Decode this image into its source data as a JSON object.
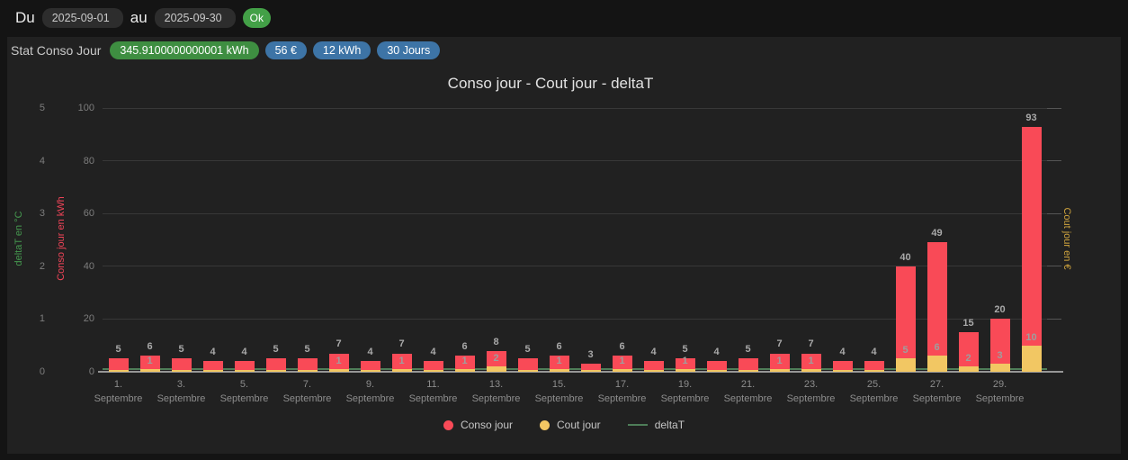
{
  "toolbar": {
    "du_label": "Du",
    "au_label": "au",
    "date_from": "2025-09-01",
    "date_to": "2025-09-30",
    "ok_label": "Ok"
  },
  "panel": {
    "title": "Stat Conso Jour",
    "badges": [
      {
        "label": "345.9100000000001 kWh",
        "color": "#3e8e41"
      },
      {
        "label": "56 €",
        "color": "#3d74a6"
      },
      {
        "label": "12 kWh",
        "color": "#3d74a6"
      },
      {
        "label": "30 Jours",
        "color": "#3d74a6"
      }
    ]
  },
  "chart_data": {
    "type": "bar",
    "title": "Conso jour - Cout jour - deltaT",
    "month": "Septembre",
    "categories": [
      1,
      2,
      3,
      4,
      5,
      6,
      7,
      8,
      9,
      10,
      11,
      12,
      13,
      14,
      15,
      16,
      17,
      18,
      19,
      20,
      21,
      22,
      23,
      24,
      25,
      26,
      27,
      28,
      29,
      30
    ],
    "x_tick_days": [
      1,
      3,
      5,
      7,
      9,
      11,
      13,
      15,
      17,
      19,
      21,
      23,
      25,
      27,
      29
    ],
    "series": [
      {
        "name": "Conso jour",
        "type": "bar",
        "color": "#f94a57",
        "axis": "kwh",
        "values": [
          5,
          6,
          5,
          4,
          4,
          5,
          5,
          7,
          4,
          7,
          4,
          6,
          8,
          5,
          6,
          3,
          6,
          4,
          5,
          4,
          5,
          7,
          7,
          4,
          4,
          40,
          49,
          15,
          20,
          93
        ]
      },
      {
        "name": "Cout jour",
        "type": "bar",
        "color": "#f2c763",
        "axis": "eur",
        "values": [
          null,
          1,
          null,
          null,
          null,
          null,
          null,
          1,
          null,
          1,
          null,
          1,
          2,
          null,
          1,
          null,
          1,
          null,
          1,
          null,
          null,
          1,
          1,
          null,
          null,
          5,
          6,
          2,
          3,
          10
        ]
      },
      {
        "name": "deltaT",
        "type": "line",
        "color": "#4e7d58",
        "axis": "delta",
        "values": [
          0,
          0,
          0,
          0,
          0,
          0,
          0,
          0,
          0,
          0,
          0,
          0,
          0,
          0,
          0,
          0,
          0,
          0,
          0,
          0,
          0,
          0,
          0,
          0,
          0,
          0,
          0,
          0,
          0,
          0
        ]
      }
    ],
    "axes": {
      "delta": {
        "label": "deltaT en °C",
        "color": "#45984f",
        "ticks": [
          0,
          1,
          2,
          3,
          4,
          5
        ],
        "max": 5
      },
      "kwh": {
        "label": "Conso jour en kWh",
        "color": "#ef4458",
        "ticks": [
          0,
          20,
          40,
          60,
          80,
          100
        ],
        "max": 100
      },
      "eur": {
        "label": "Cout jour en €",
        "color": "#cfa43e",
        "max": 100
      }
    },
    "legend": [
      {
        "label": "Conso jour",
        "color": "#f94a57",
        "marker": "circle"
      },
      {
        "label": "Cout jour",
        "color": "#f2c763",
        "marker": "circle"
      },
      {
        "label": "deltaT",
        "color": "#4e7d58",
        "marker": "line"
      }
    ],
    "grid": true,
    "background": "#212121"
  }
}
